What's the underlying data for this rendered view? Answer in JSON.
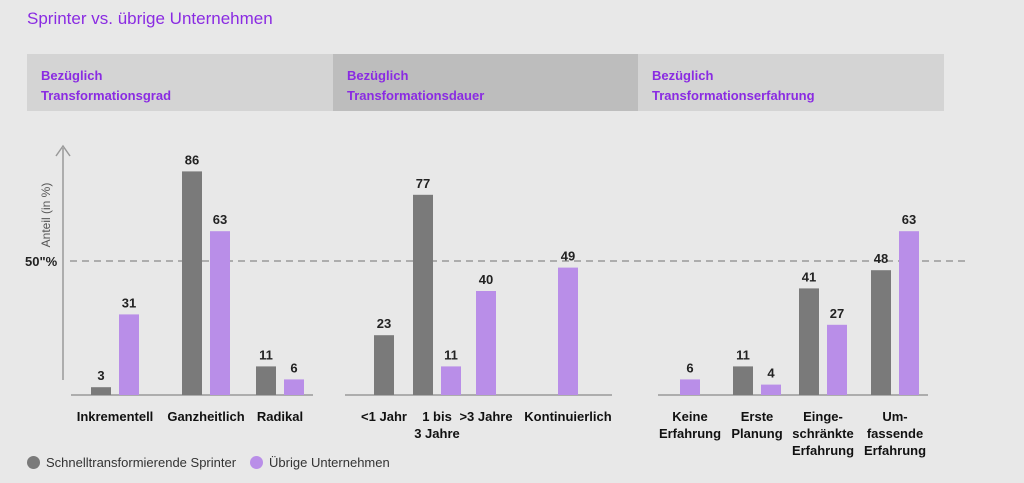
{
  "title": "Sprinter vs. übrige Unternehmen",
  "panels": [
    {
      "line1": "Bezüglich",
      "line2": "Transformationsgrad"
    },
    {
      "line1": "Bezüglich",
      "line2": "Transformationsdauer"
    },
    {
      "line1": "Bezüglich",
      "line2": "Transformationserfahrung"
    }
  ],
  "colors": {
    "sprinter": "#7a7a7a",
    "others": "#b98ee8",
    "accent": "#8a2be2"
  },
  "chart_data": {
    "type": "bar",
    "ylabel": "Anteil (in %)",
    "reference_line": {
      "value": 50,
      "label": "50\"%"
    },
    "groups": [
      {
        "categories": [
          [
            "Inkrementell"
          ],
          [
            "Ganzheitlich"
          ],
          [
            "Radikal"
          ]
        ],
        "sprinter": [
          3,
          86,
          11
        ],
        "others": [
          31,
          63,
          6
        ]
      },
      {
        "categories": [
          [
            "<1 Jahr"
          ],
          [
            "1 bis",
            "3 Jahre"
          ],
          [
            ">3 Jahre"
          ],
          [
            "Kontinuierlich"
          ]
        ],
        "sprinter": [
          23,
          77,
          null,
          null
        ],
        "others": [
          null,
          11,
          40,
          49
        ]
      },
      {
        "categories": [
          [
            "Keine",
            "Erfahrung"
          ],
          [
            "Erste",
            "Planung"
          ],
          [
            "Einge-",
            "schränkte",
            "Erfahrung"
          ],
          [
            "Um-",
            "fassende",
            "Erfahrung"
          ]
        ],
        "sprinter": [
          null,
          11,
          41,
          48
        ],
        "others": [
          6,
          4,
          27,
          63
        ]
      }
    ],
    "series": [
      {
        "name": "Schnelltransformierende Sprinter"
      },
      {
        "name": "Übrige Unternehmen"
      }
    ]
  }
}
